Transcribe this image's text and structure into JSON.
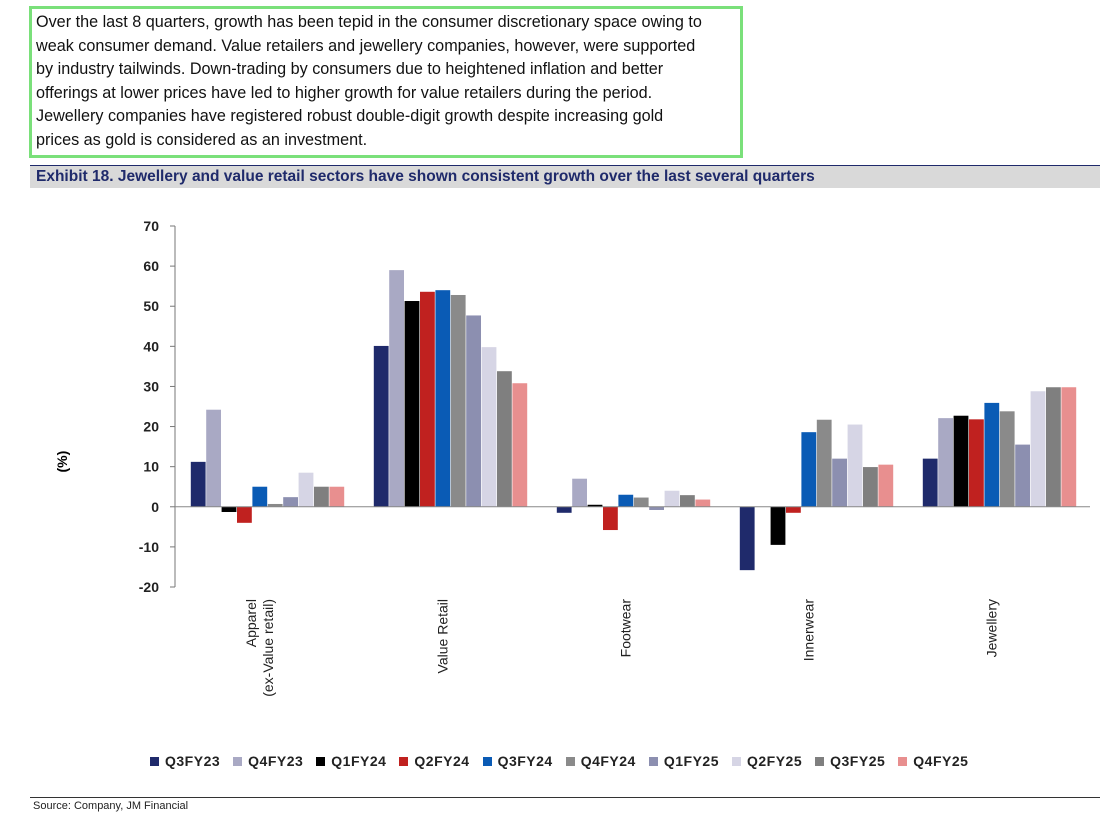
{
  "paragraph": {
    "lines": [
      "Over the last 8 quarters, growth has been tepid in the consumer discretionary space owing to",
      "weak consumer demand. Value retailers and jewellery companies, however, were supported",
      "by industry tailwinds. Down-trading by consumers due to heightened inflation and better",
      "offerings at lower prices have led to higher growth for value retailers during the period.",
      "Jewellery companies have registered robust double-digit growth despite increasing gold",
      "prices as gold is considered as an investment."
    ]
  },
  "exhibit_title": "Exhibit 18. Jewellery and value retail sectors have shown consistent growth over the last several quarters",
  "source": "Source: Company, JM Financial",
  "chart_data": {
    "type": "bar",
    "title": "",
    "ylabel": "(%)",
    "xlabel": "",
    "ylim": [
      -20,
      70
    ],
    "yticks": [
      70,
      60,
      50,
      40,
      30,
      20,
      10,
      0,
      -10,
      -20
    ],
    "grid": false,
    "legend_position": "bottom",
    "categories": [
      [
        "Apparel",
        "(ex-Value retail)"
      ],
      [
        "Value Retail"
      ],
      [
        "Footwear"
      ],
      [
        "Innerwear"
      ],
      [
        "Jewellery"
      ]
    ],
    "series": [
      {
        "name": "Q3FY23",
        "color": "#1f2a6b",
        "values": [
          11.2,
          40.1,
          -1.5,
          -15.8,
          12.0
        ]
      },
      {
        "name": "Q4FY23",
        "color": "#a9a9c4",
        "values": [
          24.2,
          59.0,
          7.0,
          null,
          22.1
        ]
      },
      {
        "name": "Q1FY24",
        "color": "#000000",
        "values": [
          -1.3,
          51.3,
          0.5,
          -9.5,
          22.7
        ]
      },
      {
        "name": "Q2FY24",
        "color": "#c0211f",
        "values": [
          -4.0,
          53.6,
          -5.8,
          -1.5,
          21.8
        ]
      },
      {
        "name": "Q3FY24",
        "color": "#0a5bb5",
        "values": [
          5.0,
          54.0,
          3.0,
          18.6,
          25.9
        ]
      },
      {
        "name": "Q4FY24",
        "color": "#8a8a8a",
        "values": [
          0.7,
          52.8,
          2.3,
          21.7,
          23.8
        ]
      },
      {
        "name": "Q1FY25",
        "color": "#8c8fb0",
        "values": [
          2.4,
          47.7,
          -0.8,
          12.0,
          15.5
        ]
      },
      {
        "name": "Q2FY25",
        "color": "#d6d5e5",
        "values": [
          8.5,
          39.8,
          4.0,
          20.5,
          28.8
        ]
      },
      {
        "name": "Q3FY25",
        "color": "#7f7f7f",
        "values": [
          5.0,
          33.8,
          2.9,
          9.9,
          29.8
        ]
      },
      {
        "name": "Q4FY25",
        "color": "#e88f8f",
        "values": [
          5.0,
          30.8,
          1.8,
          10.5,
          29.8
        ]
      }
    ]
  }
}
